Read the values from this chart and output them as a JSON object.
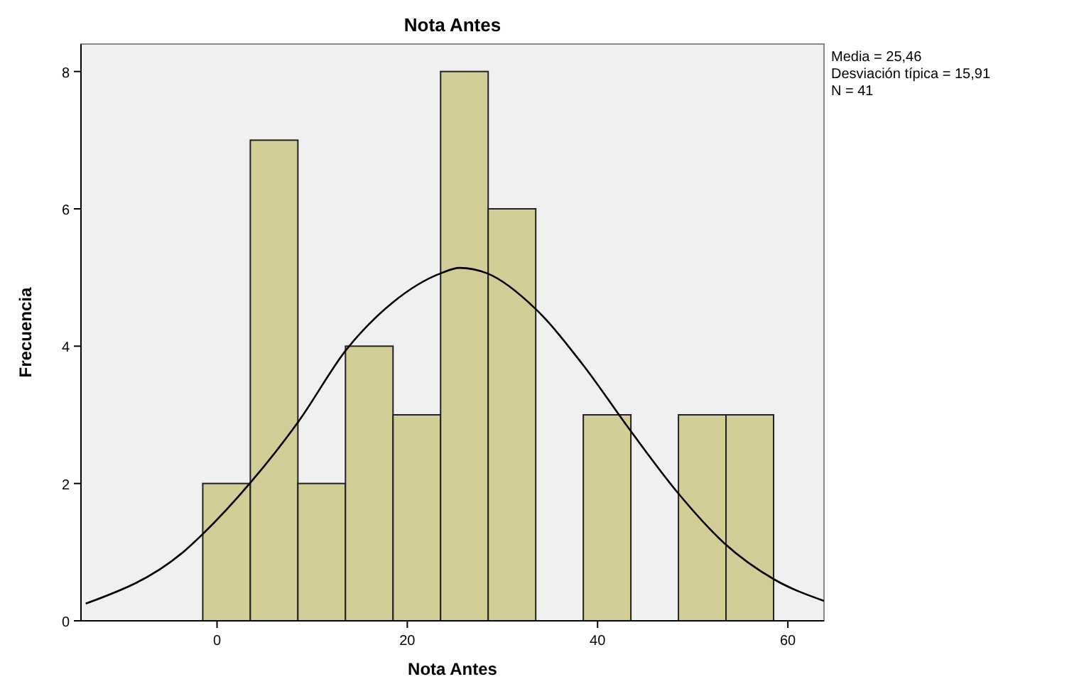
{
  "chart_data": {
    "type": "histogram",
    "title": "Nota Antes",
    "xlabel": "Nota Antes",
    "ylabel": "Frecuencia",
    "bins": [
      -1.5,
      3.5,
      8.5,
      13.5,
      18.5,
      23.5,
      28.5,
      33.5,
      38.5,
      43.5,
      48.5,
      53.5,
      58.5
    ],
    "values": [
      2,
      7,
      2,
      4,
      3,
      8,
      6,
      0,
      3,
      0,
      3,
      3
    ],
    "color": "#d3ce98",
    "series": [
      {
        "type": "line",
        "color": "#000000",
        "x": [
          -13.8,
          -3.4,
          -1.6,
          3.5,
          8.6,
          13.6,
          18.5,
          23.5,
          25.5,
          28.4,
          33.5,
          38.4,
          43.4,
          48.4,
          53.4,
          58.6,
          63.8
        ],
        "values": [
          0.25,
          1.02,
          1.25,
          2.01,
          2.91,
          3.95,
          4.64,
          5.06,
          5.14,
          5.06,
          4.54,
          3.74,
          2.78,
          1.87,
          1.12,
          0.6,
          0.29
        ]
      }
    ],
    "xlim": [
      -14.3,
      63.8
    ],
    "ylim": [
      0,
      8.4
    ],
    "xticks": [
      0,
      20,
      40,
      60
    ],
    "yticks": [
      0,
      2,
      4,
      6,
      8
    ],
    "grid": false,
    "marker": "none",
    "line_style": "solid",
    "annotations": [
      "Media = 25,46",
      "Desviación típica = 15,91",
      "N = 41"
    ]
  }
}
